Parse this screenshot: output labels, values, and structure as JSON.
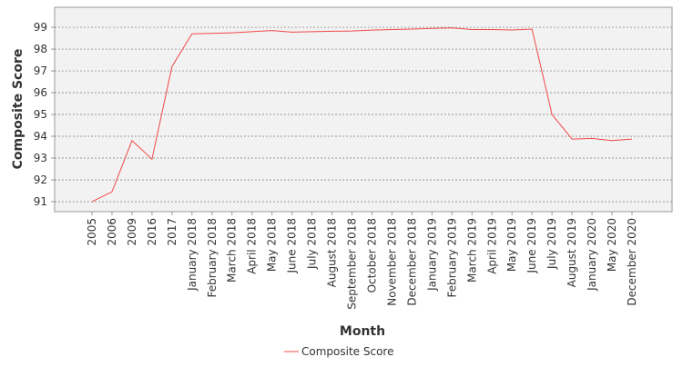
{
  "chart_data": {
    "type": "line",
    "x_label": "Month",
    "y_label": "Composite Score",
    "categories": [
      "2005",
      "2006",
      "2009",
      "2016",
      "2017",
      "January 2018",
      "February 2018",
      "March 2018",
      "April 2018",
      "May 2018",
      "June 2018",
      "July 2018",
      "August 2018",
      "September 2018",
      "October 2018",
      "November 2018",
      "December 2018",
      "January 2019",
      "February 2019",
      "March 2019",
      "April 2019",
      "May 2019",
      "June 2019",
      "July 2019",
      "August 2019",
      "January 2020",
      "May 2020",
      "December 2020"
    ],
    "series": [
      {
        "name": "Composite Score",
        "color": "#f04848",
        "values": [
          91.0,
          91.45,
          93.8,
          92.95,
          97.2,
          98.7,
          98.72,
          98.75,
          98.8,
          98.85,
          98.78,
          98.8,
          98.82,
          98.83,
          98.87,
          98.9,
          98.92,
          98.95,
          98.97,
          98.9,
          98.9,
          98.88,
          98.92,
          95.0,
          93.87,
          93.9,
          93.8,
          93.87
        ]
      }
    ],
    "ylim": [
      90.54,
      99.92
    ],
    "yticks": [
      91,
      92,
      93,
      94,
      95,
      96,
      97,
      98,
      99
    ],
    "grid": true
  }
}
